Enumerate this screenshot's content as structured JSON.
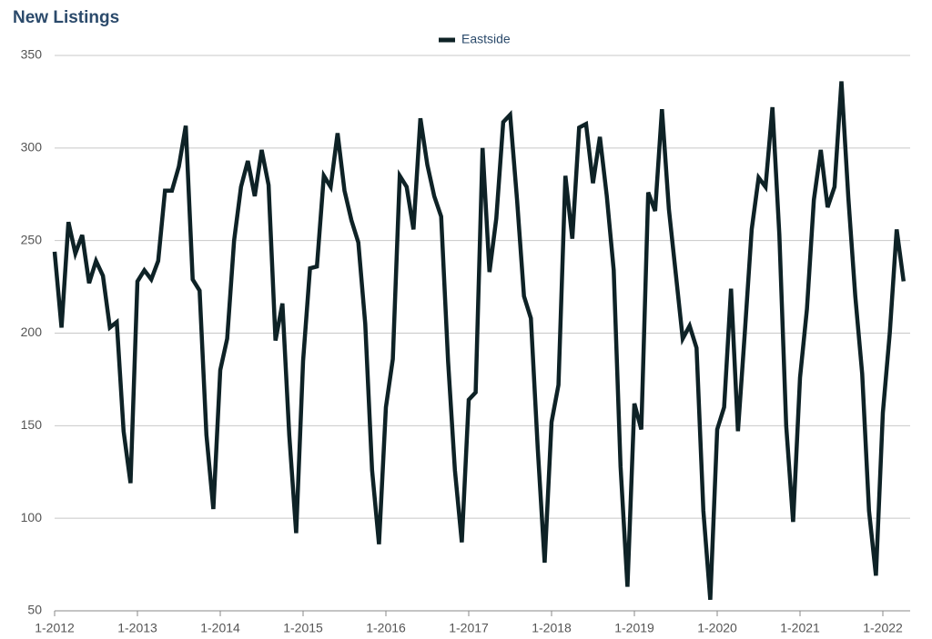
{
  "chart_data": {
    "type": "line",
    "title": "New Listings",
    "categories": [
      "1-2012",
      null,
      null,
      null,
      null,
      null,
      null,
      null,
      null,
      null,
      null,
      null,
      "1-2013",
      null,
      null,
      null,
      null,
      null,
      null,
      null,
      null,
      null,
      null,
      null,
      "1-2014",
      null,
      null,
      null,
      null,
      null,
      null,
      null,
      null,
      null,
      null,
      null,
      "1-2015",
      null,
      null,
      null,
      null,
      null,
      null,
      null,
      null,
      null,
      null,
      null,
      "1-2016",
      null,
      null,
      null,
      null,
      null,
      null,
      null,
      null,
      null,
      null,
      null,
      "1-2017",
      null,
      null,
      null,
      null,
      null,
      null,
      null,
      null,
      null,
      null,
      null,
      "1-2018",
      null,
      null,
      null,
      null,
      null,
      null,
      null,
      null,
      null,
      null,
      null,
      "1-2019",
      null,
      null,
      null,
      null,
      null,
      null,
      null,
      null,
      null,
      null,
      null,
      "1-2020",
      null,
      null,
      null,
      null,
      null,
      null,
      null,
      null,
      null,
      null,
      null,
      "1-2021",
      null,
      null,
      null,
      null,
      null,
      null,
      null,
      null,
      null,
      null,
      null,
      "1-2022",
      null,
      null,
      null
    ],
    "series": [
      {
        "name": "Eastside",
        "color": "#0e2226",
        "values": [
          244,
          203,
          260,
          243,
          253,
          227,
          239,
          231,
          203,
          206,
          147,
          119,
          228,
          234,
          229,
          239,
          277,
          277,
          290,
          312,
          229,
          223,
          145,
          105,
          180,
          197,
          250,
          279,
          293,
          274,
          299,
          280,
          196,
          216,
          145,
          92,
          185,
          235,
          236,
          285,
          279,
          308,
          277,
          261,
          249,
          205,
          126,
          86,
          160,
          186,
          285,
          279,
          256,
          316,
          291,
          274,
          263,
          185,
          126,
          87,
          164,
          168,
          300,
          233,
          262,
          314,
          318,
          272,
          220,
          208,
          138,
          76,
          152,
          172,
          285,
          251,
          311,
          313,
          281,
          306,
          274,
          234,
          128,
          63,
          162,
          148,
          276,
          266,
          321,
          267,
          232,
          197,
          204,
          192,
          104,
          56,
          148,
          160,
          224,
          147,
          200,
          256,
          284,
          279,
          322,
          253,
          150,
          98,
          176,
          213,
          272,
          299,
          268,
          279,
          336,
          273,
          220,
          178,
          104,
          69,
          157,
          200,
          256,
          228
        ]
      }
    ],
    "ylim": [
      50,
      350
    ],
    "yticks": [
      50,
      100,
      150,
      200,
      250,
      300,
      350
    ],
    "grid": true,
    "legend": "top"
  }
}
